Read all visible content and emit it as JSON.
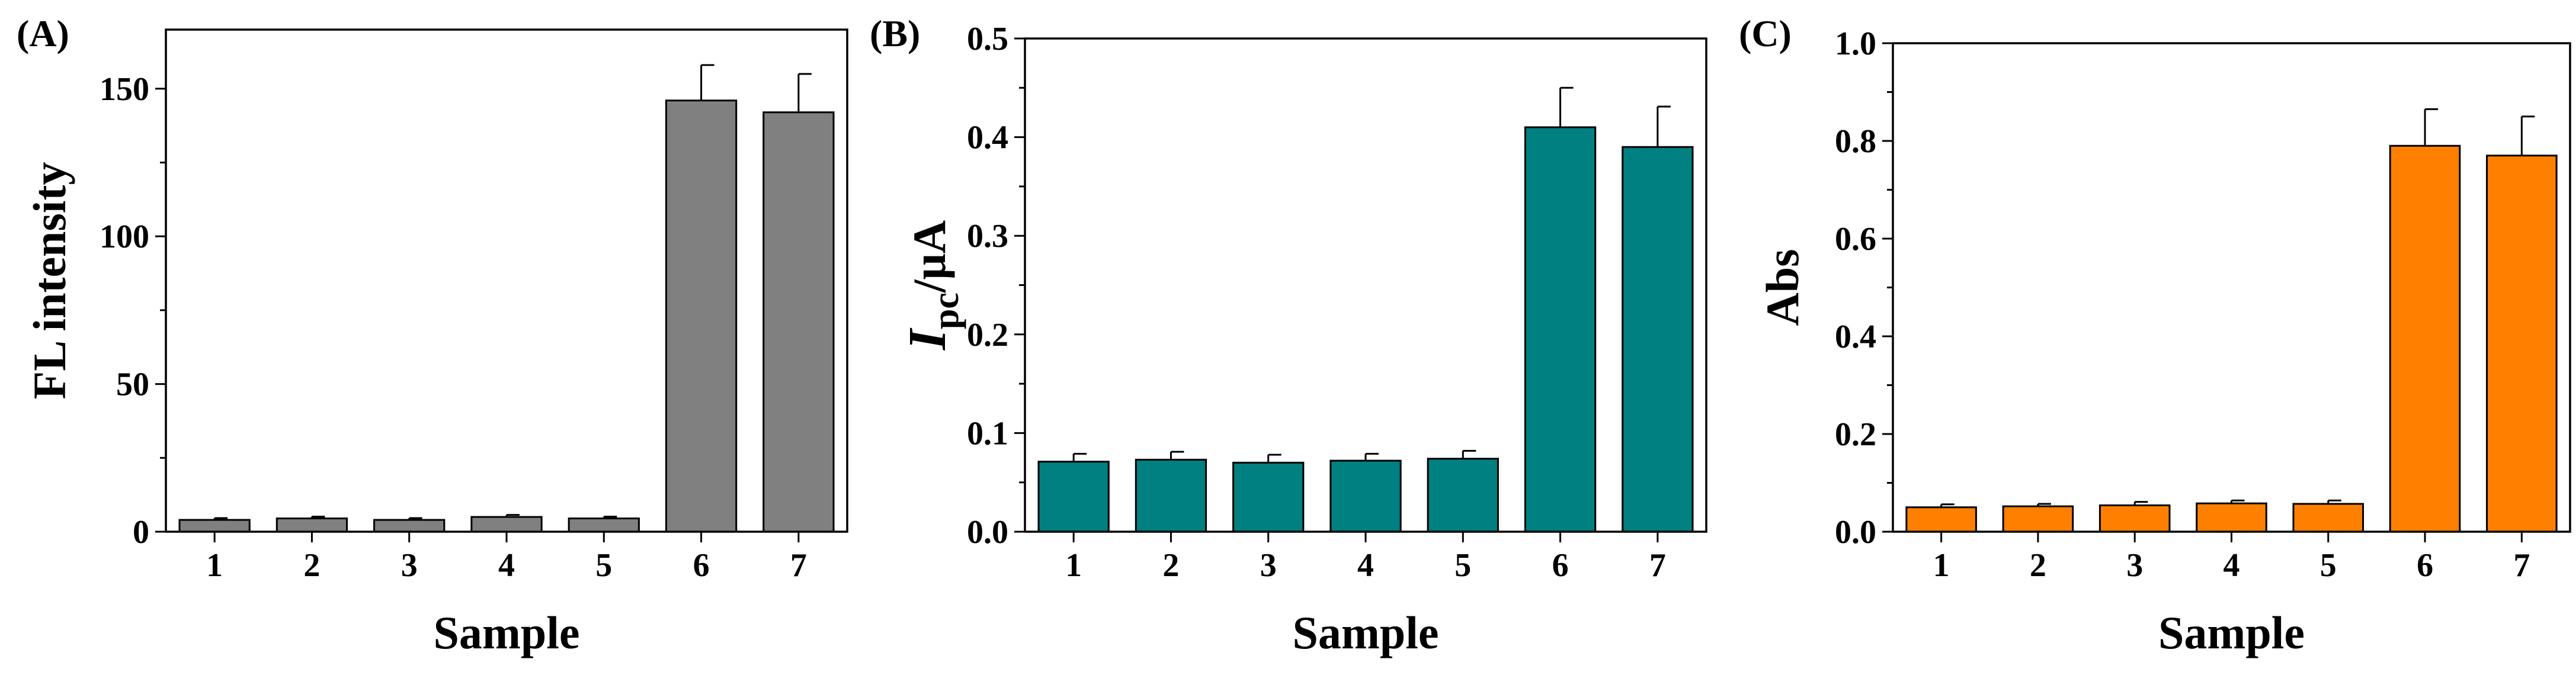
{
  "chart_data": [
    {
      "type": "bar",
      "panel_label": "(A)",
      "categories": [
        "1",
        "2",
        "3",
        "4",
        "5",
        "6",
        "7"
      ],
      "values": [
        4,
        4.5,
        4,
        5,
        4.5,
        146,
        142
      ],
      "errors": [
        0.6,
        0.6,
        0.6,
        0.7,
        0.6,
        12,
        13
      ],
      "xlabel": "Sample",
      "ylabel": "FL intensity",
      "ylim": [
        0,
        170
      ],
      "yticks": [
        0,
        50,
        100,
        150
      ],
      "ytick_labels": [
        "0",
        "50",
        "100",
        "150"
      ],
      "minor_ytick_step": 25,
      "bar_color": "#808080",
      "grid": false
    },
    {
      "type": "bar",
      "panel_label": "(B)",
      "categories": [
        "1",
        "2",
        "3",
        "4",
        "5",
        "6",
        "7"
      ],
      "values": [
        0.071,
        0.073,
        0.07,
        0.072,
        0.074,
        0.41,
        0.39
      ],
      "errors": [
        0.008,
        0.008,
        0.008,
        0.007,
        0.008,
        0.04,
        0.041
      ],
      "xlabel": "Sample",
      "ylabel": {
        "main": "I",
        "sub": "pc",
        "rest": "/μA"
      },
      "ylim": [
        0,
        0.5
      ],
      "yticks": [
        0,
        0.1,
        0.2,
        0.3,
        0.4,
        0.5
      ],
      "ytick_labels": [
        "0.0",
        "0.1",
        "0.2",
        "0.3",
        "0.4",
        "0.5"
      ],
      "minor_ytick_step": 0.05,
      "bar_color": "#008080",
      "grid": false
    },
    {
      "type": "bar",
      "panel_label": "(C)",
      "categories": [
        "1",
        "2",
        "3",
        "4",
        "5",
        "6",
        "7"
      ],
      "values": [
        0.05,
        0.052,
        0.054,
        0.058,
        0.057,
        0.79,
        0.77
      ],
      "errors": [
        0.006,
        0.005,
        0.007,
        0.006,
        0.007,
        0.075,
        0.08
      ],
      "xlabel": "Sample",
      "ylabel": "Abs",
      "ylim": [
        0,
        1.0
      ],
      "yticks": [
        0,
        0.2,
        0.4,
        0.6,
        0.8,
        1.0
      ],
      "ytick_labels": [
        "0.0",
        "0.2",
        "0.4",
        "0.6",
        "0.8",
        "1.0"
      ],
      "minor_ytick_step": 0.1,
      "bar_color": "#FF8000",
      "grid": false
    }
  ]
}
